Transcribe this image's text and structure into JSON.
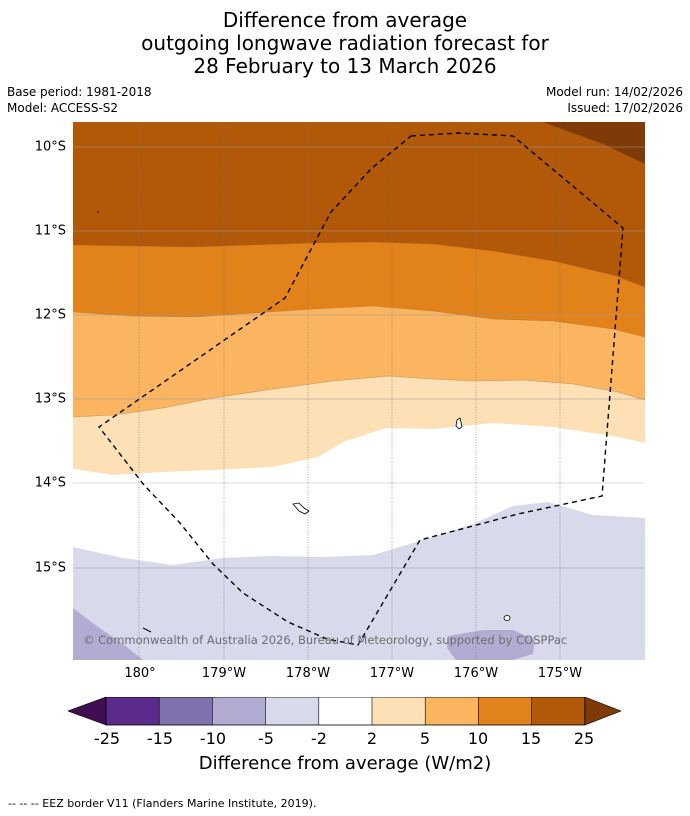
{
  "title": {
    "line1": "Difference from average",
    "line2": "outgoing longwave radiation forecast for",
    "line3": "28 February to 13 March 2026"
  },
  "meta": {
    "base_period": "Base period: 1981-2018",
    "model": "Model: ACCESS-S2",
    "model_run": "Model run: 14/02/2026",
    "issued": "Issued: 17/02/2026"
  },
  "map": {
    "lat_labels": [
      "10°S",
      "11°S",
      "12°S",
      "13°S",
      "14°S",
      "15°S"
    ],
    "lon_labels": [
      "180°",
      "179°W",
      "178°W",
      "177°W",
      "176°W",
      "175°W"
    ],
    "copyright": "© Commonwealth of Australia 2026, Bureau of Meteorology, supported by COSPPac"
  },
  "colorbar": {
    "ticks": [
      "-25",
      "-15",
      "-10",
      "-5",
      "-2",
      "2",
      "5",
      "10",
      "15",
      "25"
    ],
    "colors": [
      "#3f0f52",
      "#5c2a8b",
      "#8070ad",
      "#b2acd3",
      "#d8d9ea",
      "#ffffff",
      "#fde0b6",
      "#fbb561",
      "#e2821b",
      "#b25809",
      "#7f3a08"
    ],
    "label": "Difference from average (W/m2)"
  },
  "footnote": "--  --  -- EEZ border V11 (Flanders Marine Institute, 2019)."
}
